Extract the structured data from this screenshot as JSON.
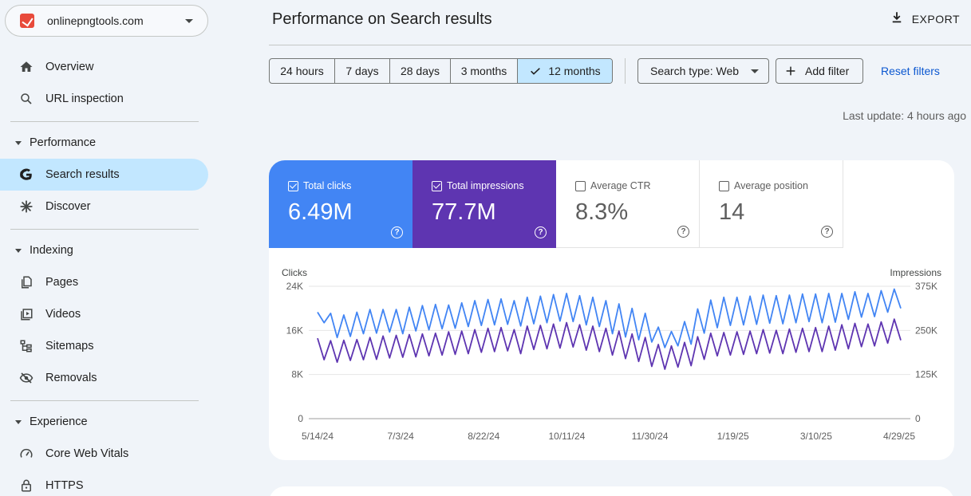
{
  "property": {
    "name": "onlinepngtools.com"
  },
  "nav": {
    "overview": "Overview",
    "url_inspection": "URL inspection",
    "performance_section": "Performance",
    "search_results": "Search results",
    "discover": "Discover",
    "indexing_section": "Indexing",
    "pages": "Pages",
    "videos": "Videos",
    "sitemaps": "Sitemaps",
    "removals": "Removals",
    "experience_section": "Experience",
    "core_web_vitals": "Core Web Vitals",
    "https": "HTTPS"
  },
  "header": {
    "title": "Performance on Search results",
    "export_label": "EXPORT"
  },
  "filters": {
    "ranges": [
      "24 hours",
      "7 days",
      "28 days",
      "3 months",
      "12 months"
    ],
    "selected_range": "12 months",
    "search_type": "Search type: Web",
    "add_filter": "Add filter",
    "reset": "Reset filters"
  },
  "last_update": "Last update: 4 hours ago",
  "metrics": {
    "clicks": {
      "label": "Total clicks",
      "value": "6.49M",
      "checked": true
    },
    "impressions": {
      "label": "Total impressions",
      "value": "77.7M",
      "checked": true
    },
    "ctr": {
      "label": "Average CTR",
      "value": "8.3%",
      "checked": false
    },
    "position": {
      "label": "Average position",
      "value": "14",
      "checked": false
    }
  },
  "colors": {
    "clicks": "#4285f4",
    "impressions": "#5e35b1",
    "accent": "#0b57d0",
    "selected": "#c2e7ff"
  },
  "chart_data": {
    "type": "line",
    "left_axis": {
      "label": "Clicks",
      "ticks": [
        "0",
        "8K",
        "16K",
        "24K"
      ],
      "range": [
        0,
        24000
      ]
    },
    "right_axis": {
      "label": "Impressions",
      "ticks": [
        "0",
        "125K",
        "250K",
        "375K"
      ],
      "range": [
        0,
        375000
      ]
    },
    "x_tick_labels": [
      "5/14/24",
      "7/3/24",
      "8/22/24",
      "10/11/24",
      "11/30/24",
      "1/19/25",
      "3/10/25",
      "4/29/25"
    ],
    "grid": true,
    "legend": "none",
    "series": [
      {
        "name": "Total clicks",
        "axis": "left",
        "color": "#4285f4",
        "values": [
          19300,
          17400,
          19100,
          14700,
          18800,
          14900,
          19300,
          15400,
          19800,
          15500,
          19800,
          15700,
          19800,
          15400,
          20200,
          15900,
          20500,
          16100,
          20700,
          16300,
          20600,
          16400,
          21000,
          16700,
          21400,
          16900,
          21600,
          17000,
          21700,
          17100,
          21400,
          16800,
          22000,
          17200,
          22200,
          17400,
          22500,
          17700,
          22700,
          17600,
          22300,
          17000,
          22000,
          16700,
          21400,
          15400,
          20800,
          14800,
          20000,
          14300,
          19100,
          13900,
          16600,
          12900,
          15800,
          13200,
          17600,
          13500,
          19900,
          15500,
          21500,
          16500,
          22000,
          16900,
          22000,
          17000,
          22200,
          17100,
          22400,
          17300,
          22300,
          17200,
          22400,
          17400,
          22600,
          17600,
          22600,
          17400,
          22700,
          17500,
          22700,
          18000,
          23000,
          18400,
          22700,
          18500,
          23200,
          19300,
          23500,
          20000
        ]
      },
      {
        "name": "Total impressions",
        "axis": "right",
        "color": "#5e35b1",
        "values": [
          228000,
          167000,
          221000,
          160000,
          222000,
          165000,
          224000,
          167000,
          230000,
          168000,
          234000,
          172000,
          236000,
          174000,
          238000,
          175000,
          240000,
          178000,
          242000,
          180000,
          246000,
          182000,
          248000,
          184000,
          252000,
          188000,
          256000,
          190000,
          258000,
          192000,
          252000,
          184000,
          262000,
          196000,
          264000,
          198000,
          268000,
          200000,
          272000,
          203000,
          266000,
          194000,
          262000,
          190000,
          256000,
          180000,
          248000,
          170000,
          240000,
          162000,
          230000,
          148000,
          210000,
          140000,
          206000,
          146000,
          216000,
          150000,
          232000,
          168000,
          242000,
          178000,
          244000,
          180000,
          246000,
          182000,
          248000,
          184000,
          252000,
          186000,
          250000,
          184000,
          254000,
          188000,
          256000,
          190000,
          258000,
          190000,
          262000,
          194000,
          266000,
          198000,
          270000,
          204000,
          268000,
          206000,
          274000,
          214000,
          282000,
          222000
        ]
      }
    ]
  }
}
